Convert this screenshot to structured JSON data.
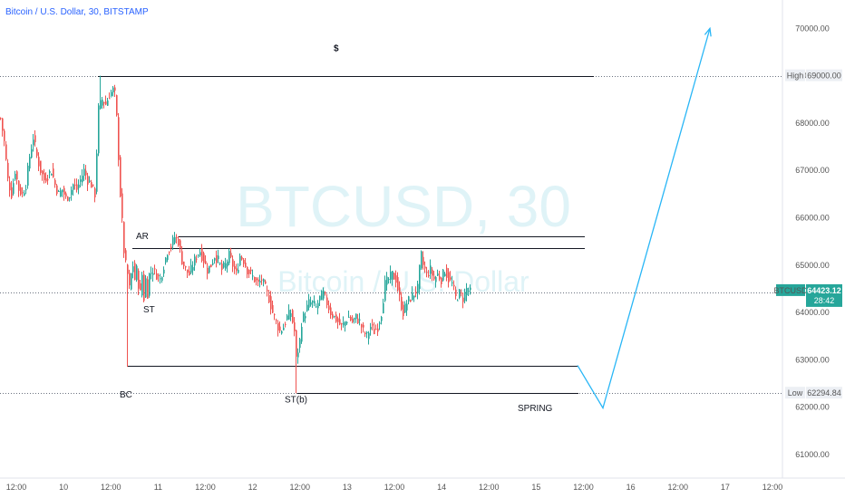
{
  "header": {
    "title": "Bitcoin / U.S. Dollar, 30, BITSTAMP"
  },
  "watermark": {
    "symbol": "BTCUSD, 30",
    "description": "Bitcoin / U.S. Dollar"
  },
  "colors": {
    "up": "#26a69a",
    "down": "#ef5350",
    "projection": "#29b6f6",
    "line": "#131722",
    "axis_text": "#555555",
    "badge_bg": "#26a69a"
  },
  "chart_data": {
    "type": "candlestick",
    "title": "Bitcoin / U.S. Dollar, 30, BITSTAMP",
    "x_ticks": [
      "12:00",
      "10",
      "12:00",
      "11",
      "12:00",
      "12",
      "12:00",
      "13",
      "12:00",
      "14",
      "12:00",
      "15",
      "12:00",
      "16",
      "12:00",
      "17",
      "12:00"
    ],
    "y_ticks": [
      "61000.00",
      "62000.00",
      "63000.00",
      "64000.00",
      "65000.00",
      "66000.00",
      "67000.00",
      "68000.00",
      "69000.00",
      "70000.00"
    ],
    "ylim": [
      60500,
      70600
    ],
    "price_path": [
      [
        0,
        68100
      ],
      [
        4,
        67600
      ],
      [
        8,
        66800
      ],
      [
        12,
        66500
      ],
      [
        16,
        67000
      ],
      [
        20,
        66600
      ],
      [
        24,
        66500
      ],
      [
        28,
        66700
      ],
      [
        32,
        67300
      ],
      [
        36,
        67700
      ],
      [
        40,
        67300
      ],
      [
        44,
        67000
      ],
      [
        48,
        66800
      ],
      [
        52,
        66900
      ],
      [
        56,
        67000
      ],
      [
        60,
        66700
      ],
      [
        64,
        66500
      ],
      [
        68,
        66600
      ],
      [
        72,
        66400
      ],
      [
        76,
        66500
      ],
      [
        80,
        66700
      ],
      [
        84,
        66600
      ],
      [
        88,
        66800
      ],
      [
        92,
        67000
      ],
      [
        96,
        66800
      ],
      [
        100,
        66700
      ],
      [
        104,
        66500
      ],
      [
        108,
        68300
      ],
      [
        112,
        68500
      ],
      [
        116,
        68400
      ],
      [
        120,
        68600
      ],
      [
        124,
        68700
      ],
      [
        126,
        68600
      ],
      [
        128,
        68100
      ],
      [
        130,
        67300
      ],
      [
        132,
        66500
      ],
      [
        134,
        65900
      ],
      [
        136,
        65300
      ],
      [
        138,
        65000
      ],
      [
        140,
        64800
      ],
      [
        142,
        64500
      ],
      [
        144,
        64800
      ],
      [
        146,
        65000
      ],
      [
        148,
        64700
      ],
      [
        150,
        64900
      ],
      [
        152,
        64600
      ],
      [
        154,
        64400
      ],
      [
        156,
        64800
      ],
      [
        158,
        64300
      ],
      [
        160,
        64700
      ],
      [
        162,
        64400
      ],
      [
        164,
        64800
      ],
      [
        168,
        64900
      ],
      [
        172,
        64800
      ],
      [
        176,
        64700
      ],
      [
        180,
        65000
      ],
      [
        184,
        65300
      ],
      [
        188,
        65400
      ],
      [
        192,
        65600
      ],
      [
        196,
        65500
      ],
      [
        200,
        65100
      ],
      [
        204,
        64900
      ],
      [
        208,
        64800
      ],
      [
        212,
        65000
      ],
      [
        216,
        65200
      ],
      [
        220,
        65300
      ],
      [
        224,
        65100
      ],
      [
        228,
        64900
      ],
      [
        232,
        65000
      ],
      [
        236,
        65200
      ],
      [
        240,
        65100
      ],
      [
        244,
        64900
      ],
      [
        248,
        65000
      ],
      [
        252,
        65200
      ],
      [
        256,
        65000
      ],
      [
        260,
        64800
      ],
      [
        264,
        65200
      ],
      [
        268,
        65100
      ],
      [
        272,
        64900
      ],
      [
        276,
        64800
      ],
      [
        280,
        64700
      ],
      [
        284,
        64600
      ],
      [
        288,
        64700
      ],
      [
        292,
        64500
      ],
      [
        296,
        64300
      ],
      [
        300,
        64000
      ],
      [
        304,
        63800
      ],
      [
        308,
        63600
      ],
      [
        312,
        63700
      ],
      [
        316,
        63900
      ],
      [
        320,
        64000
      ],
      [
        324,
        63600
      ],
      [
        326,
        63000
      ],
      [
        328,
        63200
      ],
      [
        330,
        63400
      ],
      [
        332,
        63800
      ],
      [
        336,
        64000
      ],
      [
        340,
        64200
      ],
      [
        344,
        64200
      ],
      [
        348,
        64100
      ],
      [
        352,
        64300
      ],
      [
        356,
        64400
      ],
      [
        360,
        64200
      ],
      [
        364,
        64000
      ],
      [
        368,
        63900
      ],
      [
        372,
        63800
      ],
      [
        376,
        63700
      ],
      [
        380,
        63800
      ],
      [
        384,
        63900
      ],
      [
        388,
        63800
      ],
      [
        392,
        63900
      ],
      [
        396,
        63800
      ],
      [
        400,
        63600
      ],
      [
        404,
        63500
      ],
      [
        408,
        63700
      ],
      [
        412,
        63600
      ],
      [
        416,
        63700
      ],
      [
        420,
        64000
      ],
      [
        424,
        64600
      ],
      [
        428,
        64700
      ],
      [
        432,
        64800
      ],
      [
        436,
        64700
      ],
      [
        440,
        64300
      ],
      [
        444,
        64000
      ],
      [
        448,
        64200
      ],
      [
        452,
        64300
      ],
      [
        456,
        64400
      ],
      [
        460,
        64500
      ],
      [
        462,
        64900
      ],
      [
        464,
        65200
      ],
      [
        466,
        65000
      ],
      [
        470,
        64800
      ],
      [
        474,
        64900
      ],
      [
        478,
        64700
      ],
      [
        482,
        64800
      ],
      [
        486,
        64700
      ],
      [
        490,
        64900
      ],
      [
        494,
        64700
      ],
      [
        498,
        64600
      ],
      [
        502,
        64300
      ],
      [
        506,
        64400
      ],
      [
        510,
        64300
      ],
      [
        514,
        64500
      ],
      [
        518,
        64420
      ]
    ],
    "wick_extremes": [
      {
        "x": 110,
        "high": 69000
      },
      {
        "x": 140,
        "low": 62850
      },
      {
        "x": 326,
        "low": 62290
      }
    ],
    "levels": [
      {
        "price": 69000,
        "x1": 108,
        "x2": 655
      },
      {
        "price": 65600,
        "x1": 196,
        "x2": 645
      },
      {
        "price": 65350,
        "x1": 146,
        "x2": 645
      },
      {
        "price": 62880,
        "x1": 140,
        "x2": 637
      },
      {
        "price": 62290,
        "x1": 328,
        "x2": 638
      }
    ],
    "dotted_levels": [
      69000,
      62294.84,
      64423.12
    ],
    "projection": [
      [
        637,
        62880
      ],
      [
        665,
        61980
      ],
      [
        783,
        70000
      ]
    ],
    "annotations": [
      {
        "text": "$",
        "x": 368,
        "price": 69520
      },
      {
        "text": "AR",
        "x": 150,
        "price": 65550
      },
      {
        "text": "ST",
        "x": 158,
        "price": 64000
      },
      {
        "text": "BC",
        "x": 132,
        "price": 62200
      },
      {
        "text": "ST(b)",
        "x": 314,
        "price": 62100
      },
      {
        "text": "SPRING",
        "x": 571,
        "price": 61920
      }
    ],
    "price_labels": [
      {
        "tag": "High",
        "value": "69000.00",
        "price": 69000
      },
      {
        "tag": "BTCUSD",
        "value": "64423.12",
        "sub": "28:42",
        "price": 64423.12
      },
      {
        "tag": "Low",
        "value": "62294.84",
        "price": 62294.84
      }
    ]
  }
}
